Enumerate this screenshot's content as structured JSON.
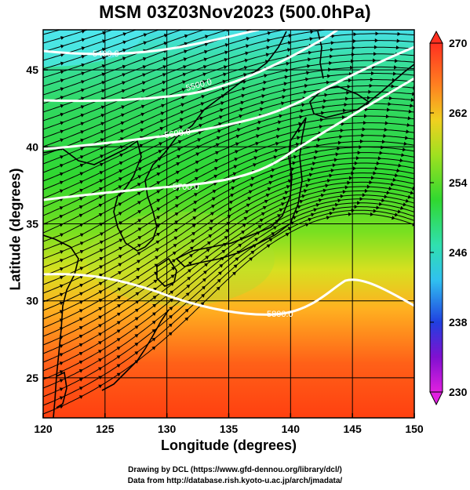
{
  "title": "MSM 03Z03Nov2023 (500.0hPa)",
  "axes": {
    "xlabel": "Longitude (degrees)",
    "ylabel": "Latitude  (degrees)",
    "x_range": [
      120,
      150
    ],
    "y_range": [
      22.4,
      47.6
    ],
    "x_ticks": [
      "120",
      "125",
      "130",
      "135",
      "140",
      "145",
      "150"
    ],
    "y_ticks": [
      "25",
      "30",
      "35",
      "40",
      "45"
    ]
  },
  "colorbar": {
    "min": 230,
    "max": 270,
    "ticks": [
      "270",
      "262",
      "254",
      "246",
      "238",
      "230"
    ]
  },
  "contour_labels": [
    "5400.0",
    "5500.0",
    "5600.0",
    "5700.0",
    "5800.0"
  ],
  "credits": {
    "line1": "Drawing by DCL (https://www.gfd-dennou.org/library/dcl/)",
    "line2": "Data from http://database.rish.kyoto-u.ac.jp/arch/jmadata/"
  },
  "colors": {
    "cold": "#40e0ff",
    "mid": "#30d830",
    "warm": "#ff4010",
    "contour": "#ffffff",
    "streamline": "#000000"
  }
}
